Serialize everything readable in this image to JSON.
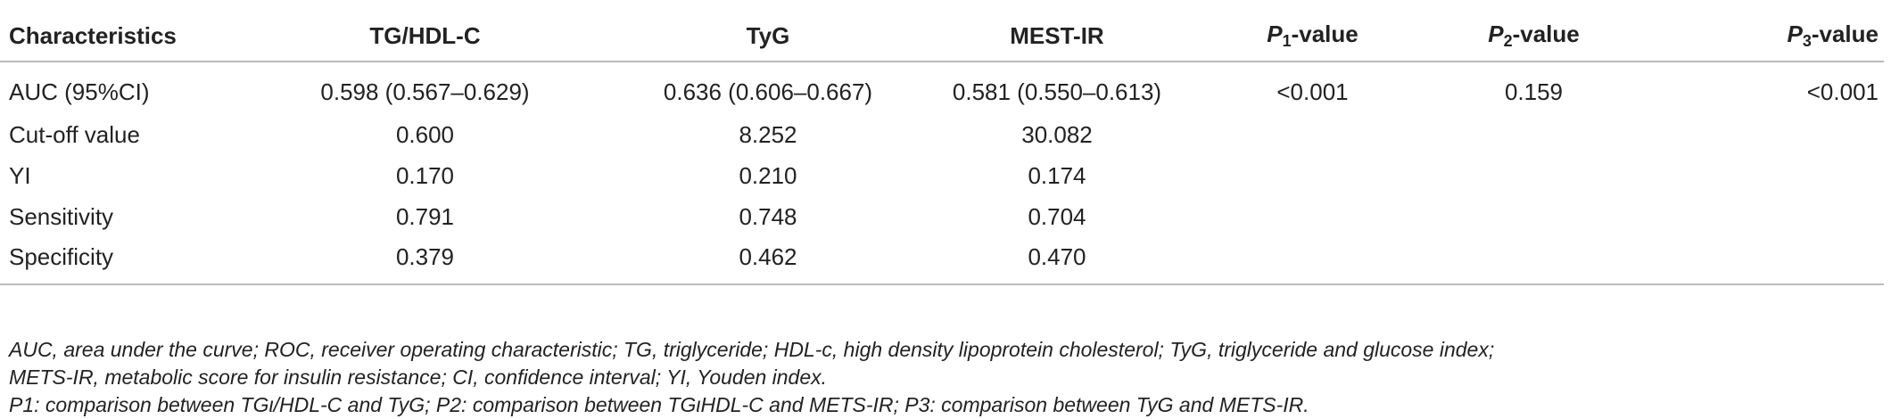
{
  "table": {
    "headers": [
      {
        "text": "Characteristics"
      },
      {
        "text": "TG/HDL-C"
      },
      {
        "text": "TyG"
      },
      {
        "text": "MEST-IR"
      },
      {
        "prefix": "P",
        "sub": "1",
        "suffix": "-value"
      },
      {
        "prefix": "P",
        "sub": "2",
        "suffix": "-value"
      },
      {
        "prefix": "P",
        "sub": "3",
        "suffix": "-value"
      }
    ],
    "rows": [
      [
        "AUC (95%CI)",
        "0.598 (0.567–0.629)",
        "0.636 (0.606–0.667)",
        "0.581 (0.550–0.613)",
        "<0.001",
        "0.159",
        "<0.001"
      ],
      [
        "Cut-off value",
        "0.600",
        "8.252",
        "30.082",
        "",
        "",
        ""
      ],
      [
        "YI",
        "0.170",
        "0.210",
        "0.174",
        "",
        "",
        ""
      ],
      [
        "Sensitivity",
        "0.791",
        "0.748",
        "0.704",
        "",
        "",
        ""
      ],
      [
        "Specificity",
        "0.379",
        "0.462",
        "0.470",
        "",
        "",
        ""
      ]
    ]
  },
  "footnotes": [
    "AUC, area under the curve; ROC, receiver operating characteristic; TG, triglyceride; HDL-c, high density lipoprotein cholesterol; TyG, triglyceride and glucose index;",
    "METS-IR, metabolic score for insulin resistance; CI, confidence interval; YI, Youden index.",
    "P1: comparison between TGι/HDL-C and TyG; P2: comparison between TGιHDL-C and METS-IR; P3: comparison between TyG and METS-IR."
  ]
}
